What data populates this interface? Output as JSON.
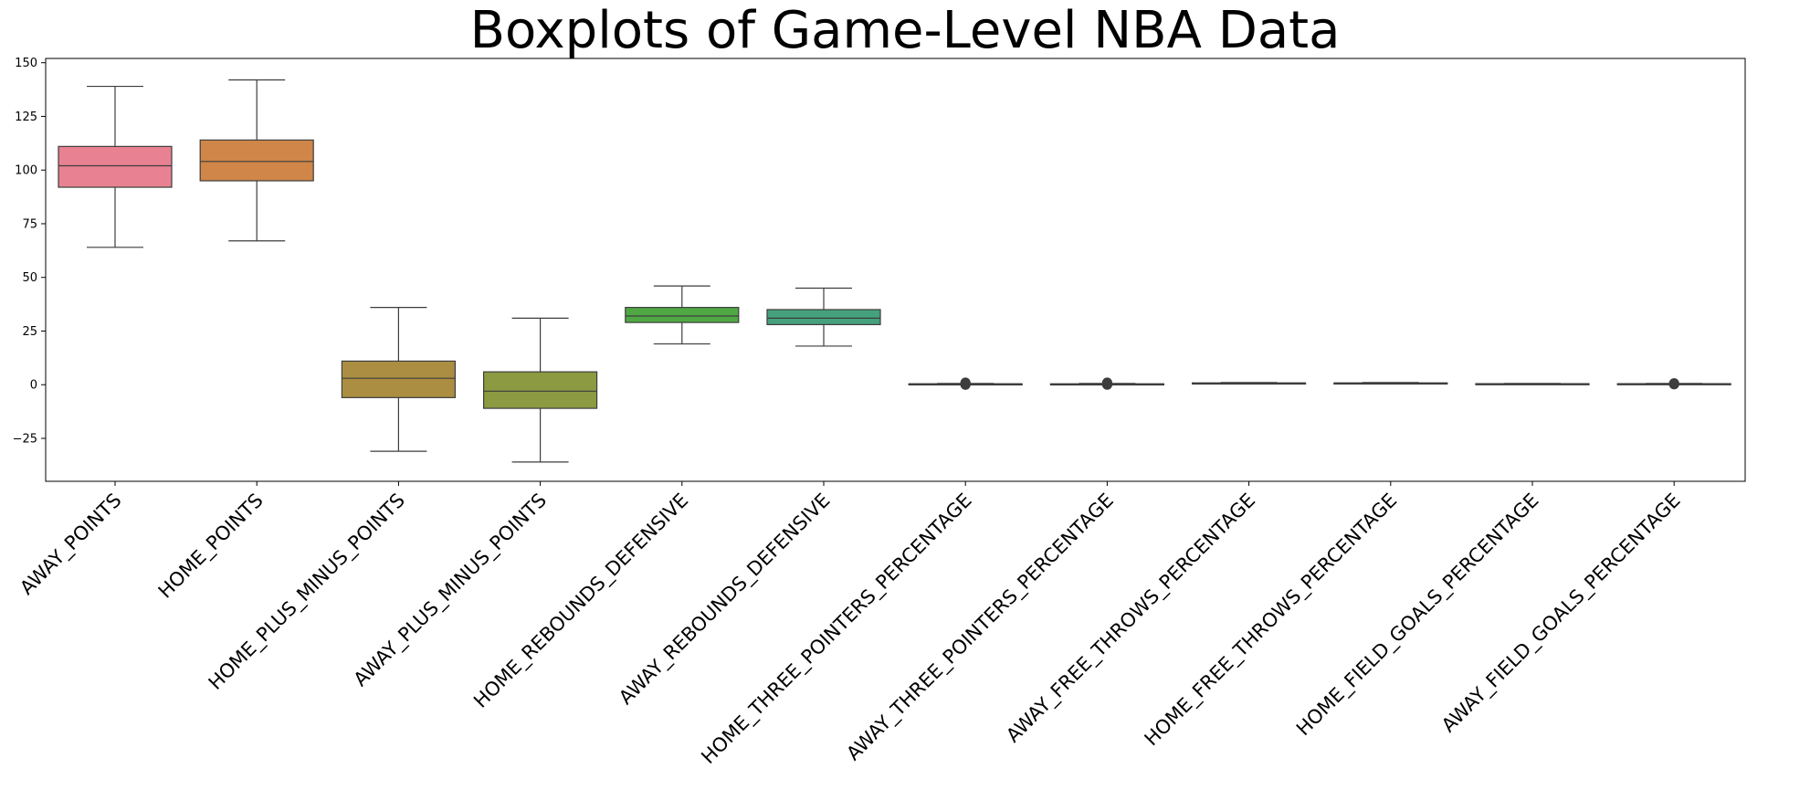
{
  "chart_data": {
    "type": "boxplot",
    "title": "Boxplots of Game-Level NBA Data",
    "xlabel": "",
    "ylabel": "",
    "ylim": [
      -45,
      152
    ],
    "yticks": [
      -25,
      0,
      25,
      50,
      75,
      100,
      125,
      150
    ],
    "ytick_labels": [
      "−25",
      "0",
      "25",
      "50",
      "75",
      "100",
      "125",
      "150"
    ],
    "grid": false,
    "categories": [
      "AWAY_POINTS",
      "HOME_POINTS",
      "HOME_PLUS_MINUS_POINTS",
      "AWAY_PLUS_MINUS_POINTS",
      "HOME_REBOUNDS_DEFENSIVE",
      "AWAY_REBOUNDS_DEFENSIVE",
      "HOME_THREE_POINTERS_PERCENTAGE",
      "AWAY_THREE_POINTERS_PERCENTAGE",
      "AWAY_FREE_THROWS_PERCENTAGE",
      "HOME_FREE_THROWS_PERCENTAGE",
      "HOME_FIELD_GOALS_PERCENTAGE",
      "AWAY_FIELD_GOALS_PERCENTAGE"
    ],
    "boxes": [
      {
        "min": 64,
        "q1": 92,
        "median": 102,
        "q3": 111,
        "max": 139,
        "color": "#e88292",
        "outliers": []
      },
      {
        "min": 67,
        "q1": 95,
        "median": 104,
        "q3": 114,
        "max": 142,
        "color": "#cf8648",
        "outliers": []
      },
      {
        "min": -31,
        "q1": -6,
        "median": 3,
        "q3": 11,
        "max": 36,
        "color": "#ab8e42",
        "outliers": []
      },
      {
        "min": -36,
        "q1": -11,
        "median": -3,
        "q3": 6,
        "max": 31,
        "color": "#8c9a42",
        "outliers": []
      },
      {
        "min": 19,
        "q1": 29,
        "median": 32,
        "q3": 36,
        "max": 46,
        "color": "#50a844",
        "outliers": []
      },
      {
        "min": 18,
        "q1": 28,
        "median": 31,
        "q3": 35,
        "max": 45,
        "color": "#45a17d",
        "outliers": []
      },
      {
        "min": 0.1,
        "q1": 0.3,
        "median": 0.36,
        "q3": 0.42,
        "max": 0.6,
        "color": "#46a39e",
        "outliers": [
          0.0,
          0.02,
          0.7,
          0.8,
          1.0
        ]
      },
      {
        "min": 0.1,
        "q1": 0.3,
        "median": 0.35,
        "q3": 0.41,
        "max": 0.6,
        "color": "#49a1b8",
        "outliers": [
          0.0,
          0.03,
          0.7,
          0.8,
          1.0
        ]
      },
      {
        "min": 0.45,
        "q1": 0.68,
        "median": 0.76,
        "q3": 0.83,
        "max": 1.0,
        "color": "#56a2d9",
        "outliers": []
      },
      {
        "min": 0.45,
        "q1": 0.69,
        "median": 0.77,
        "q3": 0.84,
        "max": 1.0,
        "color": "#8f9be8",
        "outliers": []
      },
      {
        "min": 0.3,
        "q1": 0.41,
        "median": 0.45,
        "q3": 0.49,
        "max": 0.6,
        "color": "#c58be4",
        "outliers": []
      },
      {
        "min": 0.3,
        "q1": 0.41,
        "median": 0.45,
        "q3": 0.49,
        "max": 0.6,
        "color": "#e486c4",
        "outliers": [
          0.2,
          0.22,
          0.65,
          0.7
        ]
      }
    ]
  }
}
